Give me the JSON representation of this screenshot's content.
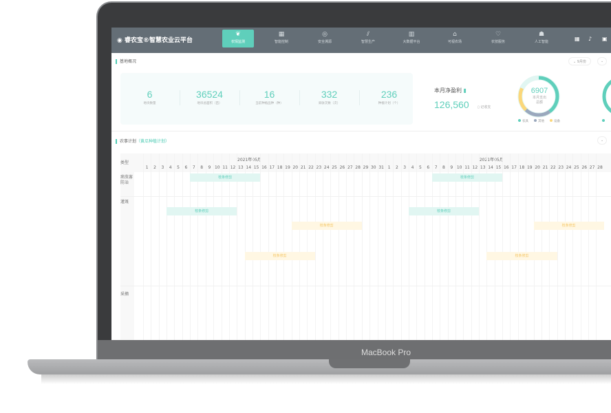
{
  "app": {
    "title": "睿农宝®智慧农业云平台"
  },
  "nav": [
    {
      "label": "农情监测",
      "icon": "leaf-icon",
      "active": true
    },
    {
      "label": "智能控制",
      "icon": "control-icon"
    },
    {
      "label": "安全溯源",
      "icon": "trace-icon"
    },
    {
      "label": "智慧生产",
      "icon": "production-icon"
    },
    {
      "label": "大数据平台",
      "icon": "bar-chart-icon"
    },
    {
      "label": "可视农场",
      "icon": "farm-icon"
    },
    {
      "label": "农技服务",
      "icon": "service-icon"
    },
    {
      "label": "人工智能",
      "icon": "robot-icon"
    }
  ],
  "overview": {
    "title": "基地概况",
    "month": "9月份",
    "stats": [
      {
        "value": "6",
        "label": "地块数量"
      },
      {
        "value": "36524",
        "label": "地块总面积（亩）"
      },
      {
        "value": "16",
        "label": "当前种植品种（种）"
      },
      {
        "value": "332",
        "label": "采收次数（次）"
      },
      {
        "value": "236",
        "label": "种植计划（个）"
      }
    ],
    "profit": {
      "label": "本月净盈利",
      "value": "126,560",
      "action": "记收支"
    },
    "donut": {
      "value": "6907",
      "label": "本月支出总额",
      "legend": [
        {
          "name": "农具",
          "color": "#5fcfbb"
        },
        {
          "name": "其他",
          "color": "#9aa8bd"
        },
        {
          "name": "设备",
          "color": "#fbd77a"
        }
      ],
      "colors": {
        "teal": "#5fcfbb",
        "gray": "#9aa8bd",
        "yellow": "#fbd77a"
      }
    }
  },
  "plan": {
    "title": "农事计划",
    "subtitle": "（黄瓜种植计划）",
    "type_header": "类型",
    "months": [
      "2021年05月",
      "2021年05月"
    ],
    "rows": [
      "病虫害防治",
      "灌溉",
      "采摘"
    ],
    "bars": [
      {
        "label": "枝条修剪",
        "start": 7,
        "end": 15,
        "color": "teal"
      },
      {
        "label": "枝条修剪",
        "start": 4,
        "end": 12,
        "color": "teal"
      },
      {
        "label": "枝条修剪",
        "start": 20,
        "end": 28,
        "color": "orange"
      },
      {
        "label": "枝条修剪",
        "start": 14,
        "end": 22,
        "color": "orange"
      }
    ]
  },
  "device": {
    "brand": "MacBook Pro"
  }
}
